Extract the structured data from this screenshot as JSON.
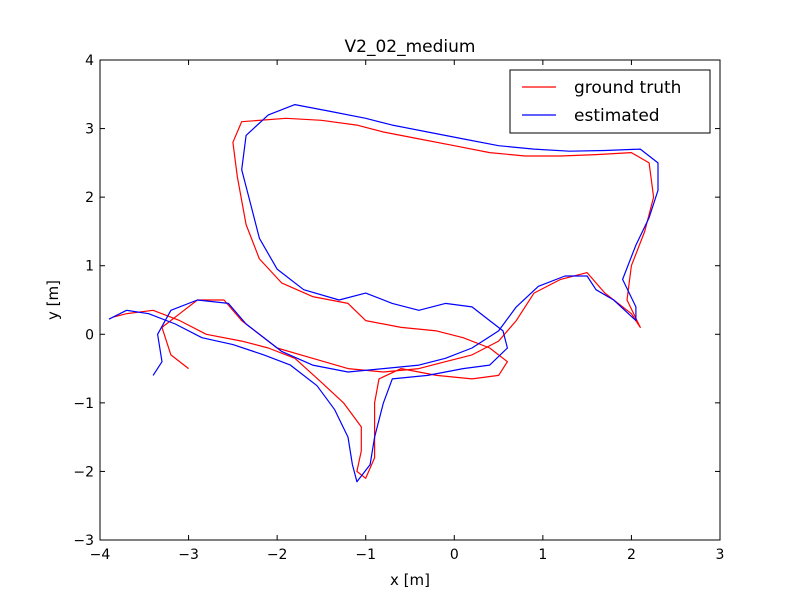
{
  "chart_data": {
    "type": "line",
    "title": "V2_02_medium",
    "xlabel": "x [m]",
    "ylabel": "y [m]",
    "xlim": [
      -4,
      3
    ],
    "ylim": [
      -3,
      4
    ],
    "xticks": [
      -4,
      -3,
      -2,
      -1,
      0,
      1,
      2,
      3
    ],
    "yticks": [
      -3,
      -2,
      -1,
      0,
      1,
      2,
      3,
      4
    ],
    "grid": false,
    "legend_position": "top-right",
    "series": [
      {
        "name": "ground truth",
        "color": "#ff0000",
        "points": [
          [
            -3.0,
            -0.5
          ],
          [
            -3.2,
            -0.3
          ],
          [
            -3.3,
            0.1
          ],
          [
            -3.1,
            0.3
          ],
          [
            -2.9,
            0.5
          ],
          [
            -2.6,
            0.5
          ],
          [
            -2.4,
            0.2
          ],
          [
            -2.0,
            -0.2
          ],
          [
            -1.6,
            -0.35
          ],
          [
            -1.2,
            -0.5
          ],
          [
            -0.8,
            -0.55
          ],
          [
            -0.4,
            -0.5
          ],
          [
            -0.1,
            -0.4
          ],
          [
            0.2,
            -0.3
          ],
          [
            0.5,
            -0.1
          ],
          [
            0.7,
            0.2
          ],
          [
            0.9,
            0.6
          ],
          [
            1.2,
            0.8
          ],
          [
            1.5,
            0.9
          ],
          [
            1.6,
            0.75
          ],
          [
            1.7,
            0.6
          ],
          [
            2.0,
            0.3
          ],
          [
            2.1,
            0.1
          ],
          [
            1.95,
            0.5
          ],
          [
            2.0,
            1.0
          ],
          [
            2.15,
            1.5
          ],
          [
            2.25,
            2.0
          ],
          [
            2.2,
            2.5
          ],
          [
            2.0,
            2.65
          ],
          [
            1.6,
            2.62
          ],
          [
            1.2,
            2.6
          ],
          [
            0.8,
            2.6
          ],
          [
            0.4,
            2.65
          ],
          [
            0.0,
            2.75
          ],
          [
            -0.4,
            2.85
          ],
          [
            -0.8,
            2.95
          ],
          [
            -1.1,
            3.05
          ],
          [
            -1.5,
            3.12
          ],
          [
            -1.9,
            3.15
          ],
          [
            -2.4,
            3.1
          ],
          [
            -2.5,
            2.8
          ],
          [
            -2.45,
            2.3
          ],
          [
            -2.35,
            1.6
          ],
          [
            -2.2,
            1.1
          ],
          [
            -1.95,
            0.75
          ],
          [
            -1.6,
            0.55
          ],
          [
            -1.2,
            0.45
          ],
          [
            -1.0,
            0.2
          ],
          [
            -0.6,
            0.1
          ],
          [
            -0.2,
            0.05
          ],
          [
            0.1,
            -0.05
          ],
          [
            0.4,
            -0.2
          ],
          [
            0.6,
            -0.4
          ],
          [
            0.5,
            -0.6
          ],
          [
            0.2,
            -0.65
          ],
          [
            -0.2,
            -0.6
          ],
          [
            -0.6,
            -0.5
          ],
          [
            -0.85,
            -0.65
          ],
          [
            -0.9,
            -1.0
          ],
          [
            -0.9,
            -1.4
          ],
          [
            -0.9,
            -1.8
          ],
          [
            -1.0,
            -2.1
          ],
          [
            -1.1,
            -2.0
          ],
          [
            -1.05,
            -1.7
          ],
          [
            -1.05,
            -1.35
          ],
          [
            -1.25,
            -1.0
          ],
          [
            -1.5,
            -0.7
          ],
          [
            -1.8,
            -0.35
          ],
          [
            -2.1,
            -0.2
          ],
          [
            -2.4,
            -0.1
          ],
          [
            -2.8,
            0.0
          ],
          [
            -3.1,
            0.2
          ],
          [
            -3.4,
            0.35
          ],
          [
            -3.7,
            0.3
          ],
          [
            -3.85,
            0.25
          ]
        ]
      },
      {
        "name": "estimated",
        "color": "#0000ff",
        "points": [
          [
            -3.4,
            -0.6
          ],
          [
            -3.3,
            -0.4
          ],
          [
            -3.35,
            0.0
          ],
          [
            -3.2,
            0.35
          ],
          [
            -2.9,
            0.5
          ],
          [
            -2.55,
            0.45
          ],
          [
            -2.35,
            0.15
          ],
          [
            -1.95,
            -0.25
          ],
          [
            -1.6,
            -0.45
          ],
          [
            -1.2,
            -0.55
          ],
          [
            -0.8,
            -0.5
          ],
          [
            -0.4,
            -0.45
          ],
          [
            -0.1,
            -0.35
          ],
          [
            0.2,
            -0.2
          ],
          [
            0.5,
            0.05
          ],
          [
            0.7,
            0.4
          ],
          [
            0.95,
            0.7
          ],
          [
            1.25,
            0.85
          ],
          [
            1.5,
            0.85
          ],
          [
            1.6,
            0.65
          ],
          [
            1.8,
            0.5
          ],
          [
            2.05,
            0.2
          ],
          [
            2.05,
            0.4
          ],
          [
            1.9,
            0.8
          ],
          [
            2.05,
            1.3
          ],
          [
            2.2,
            1.7
          ],
          [
            2.3,
            2.1
          ],
          [
            2.3,
            2.5
          ],
          [
            2.1,
            2.7
          ],
          [
            1.7,
            2.68
          ],
          [
            1.3,
            2.67
          ],
          [
            0.9,
            2.7
          ],
          [
            0.5,
            2.75
          ],
          [
            0.1,
            2.85
          ],
          [
            -0.3,
            2.95
          ],
          [
            -0.7,
            3.05
          ],
          [
            -1.0,
            3.15
          ],
          [
            -1.4,
            3.25
          ],
          [
            -1.8,
            3.35
          ],
          [
            -2.1,
            3.2
          ],
          [
            -2.35,
            2.9
          ],
          [
            -2.4,
            2.4
          ],
          [
            -2.3,
            1.9
          ],
          [
            -2.2,
            1.4
          ],
          [
            -2.0,
            0.95
          ],
          [
            -1.7,
            0.65
          ],
          [
            -1.3,
            0.5
          ],
          [
            -1.0,
            0.6
          ],
          [
            -0.7,
            0.45
          ],
          [
            -0.4,
            0.35
          ],
          [
            -0.1,
            0.45
          ],
          [
            0.2,
            0.4
          ],
          [
            0.4,
            0.2
          ],
          [
            0.55,
            0.05
          ],
          [
            0.6,
            -0.2
          ],
          [
            0.4,
            -0.45
          ],
          [
            0.1,
            -0.5
          ],
          [
            -0.3,
            -0.6
          ],
          [
            -0.7,
            -0.65
          ],
          [
            -0.8,
            -1.0
          ],
          [
            -0.9,
            -1.5
          ],
          [
            -0.95,
            -1.9
          ],
          [
            -1.1,
            -2.15
          ],
          [
            -1.15,
            -1.9
          ],
          [
            -1.2,
            -1.5
          ],
          [
            -1.35,
            -1.1
          ],
          [
            -1.55,
            -0.75
          ],
          [
            -1.85,
            -0.45
          ],
          [
            -2.15,
            -0.3
          ],
          [
            -2.5,
            -0.15
          ],
          [
            -2.85,
            -0.05
          ],
          [
            -3.15,
            0.15
          ],
          [
            -3.45,
            0.3
          ],
          [
            -3.7,
            0.35
          ],
          [
            -3.9,
            0.22
          ]
        ]
      }
    ]
  }
}
